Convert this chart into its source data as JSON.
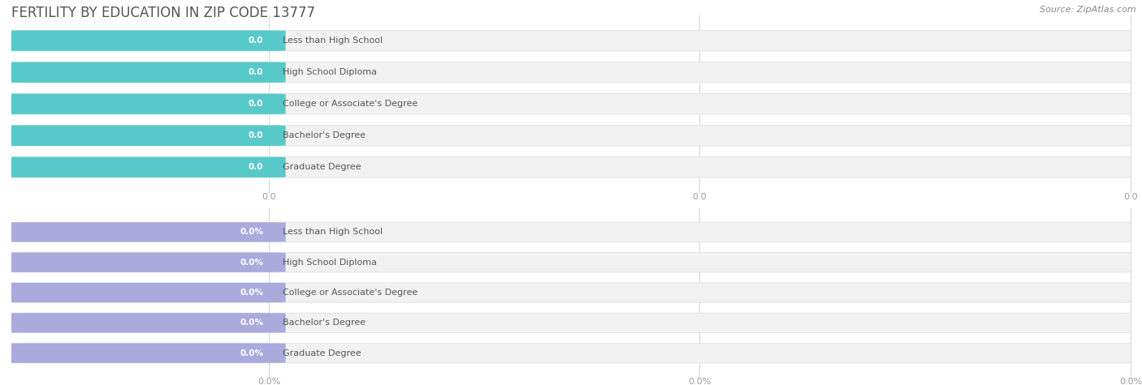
{
  "title": "FERTILITY BY EDUCATION IN ZIP CODE 13777",
  "source": "Source: ZipAtlas.com",
  "categories": [
    "Less than High School",
    "High School Diploma",
    "College or Associate's Degree",
    "Bachelor's Degree",
    "Graduate Degree"
  ],
  "top_values": [
    0.0,
    0.0,
    0.0,
    0.0,
    0.0
  ],
  "bottom_values": [
    0.0,
    0.0,
    0.0,
    0.0,
    0.0
  ],
  "top_bar_color": "#57C9C9",
  "bottom_bar_color": "#AAAADD",
  "bar_bg_color": "#F2F2F2",
  "bar_border_color": "#E0E0E0",
  "background_color": "#FFFFFF",
  "title_color": "#555555",
  "grid_color": "#D8D8D8",
  "value_text_color": "#FFFFFF",
  "label_text_color": "#555555",
  "axis_tick_color": "#999999",
  "top_value_suffix": "",
  "bottom_value_suffix": "%",
  "top_axis_ticks": [
    "0.0",
    "0.0",
    "0.0"
  ],
  "bottom_axis_ticks": [
    "0.0%",
    "0.0%",
    "0.0%"
  ],
  "figure_width": 14.06,
  "figure_height": 4.75,
  "title_fontsize": 12,
  "source_fontsize": 8,
  "label_fontsize": 8,
  "value_fontsize": 7.5,
  "tick_fontsize": 8
}
